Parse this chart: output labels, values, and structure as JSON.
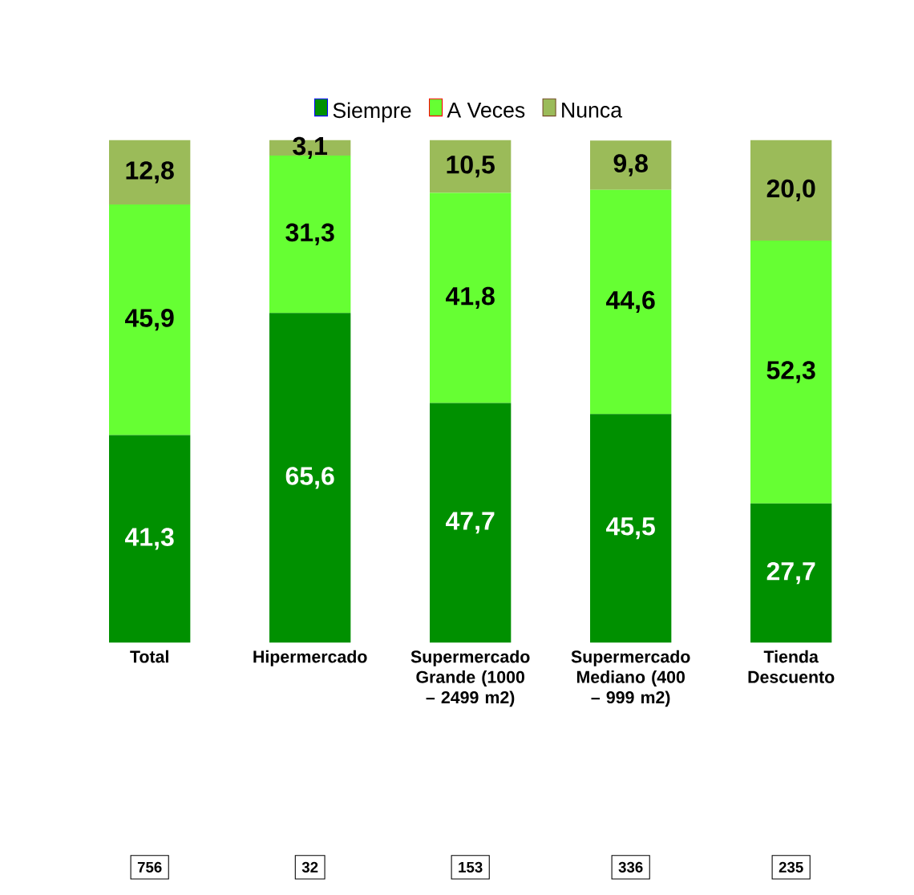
{
  "chart_data": {
    "type": "bar",
    "stacked": true,
    "legend": "top",
    "categories": [
      "Total",
      "Hipermercado",
      "Supermercado Grande (1000 – 2499 m2)",
      "Supermercado Mediano (400 – 999 m2)",
      "Tienda Descuento"
    ],
    "series": [
      {
        "name": "Siempre",
        "color": "#009000",
        "values": [
          41.3,
          65.6,
          47.7,
          45.5,
          27.7
        ],
        "value_labels": [
          "41,3",
          "65,6",
          "47,7",
          "45,5",
          "27,7"
        ]
      },
      {
        "name": "A Veces",
        "color": "#66ff33",
        "values": [
          45.9,
          31.3,
          41.8,
          44.6,
          52.3
        ],
        "value_labels": [
          "45,9",
          "31,3",
          "41,8",
          "44,6",
          "52,3"
        ]
      },
      {
        "name": "Nunca",
        "color": "#9bbb59",
        "values": [
          12.8,
          3.1,
          10.5,
          9.8,
          20.0
        ],
        "value_labels": [
          "12,8",
          "3,1",
          "10,5",
          "9,8",
          "20,0"
        ]
      }
    ],
    "annotations": [
      "756",
      "32",
      "153",
      "336",
      "235"
    ]
  }
}
